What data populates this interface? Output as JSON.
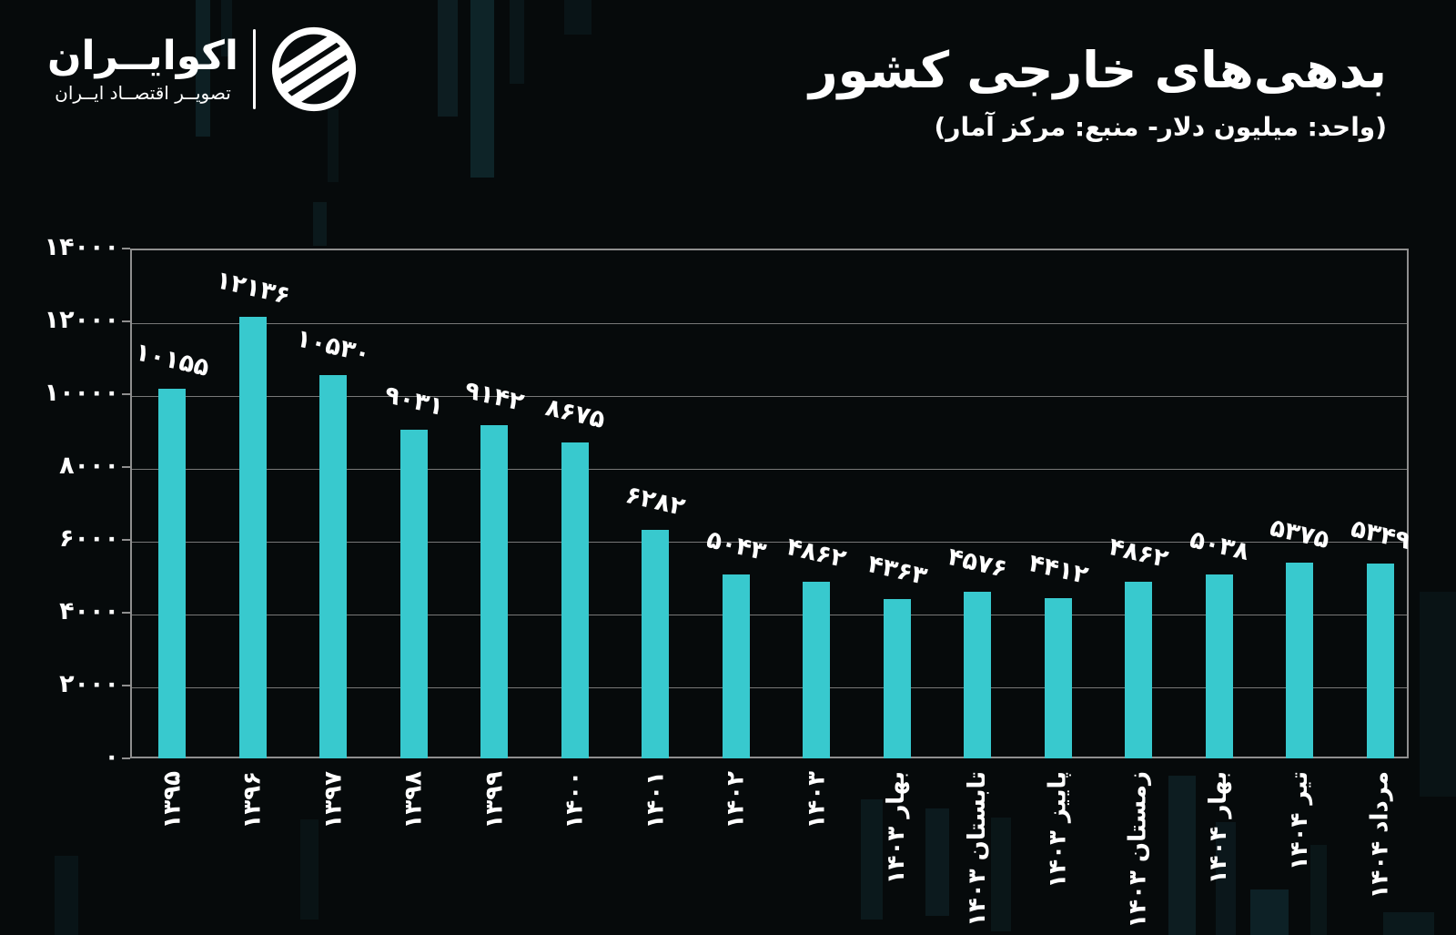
{
  "brand": {
    "name": "اکوایــران",
    "tagline": "تصویــر اقتصــاد ایــران"
  },
  "chart_data": {
    "type": "bar",
    "title": "بدهی‌های خارجی کشور",
    "subtitle": "(واحد: میلیون دلار- منبع: مرکز آمار)",
    "unit": "میلیون دلار",
    "source": "مرکز آمار",
    "categories": [
      "۱۳۹۵",
      "۱۳۹۶",
      "۱۳۹۷",
      "۱۳۹۸",
      "۱۳۹۹",
      "۱۴۰۰",
      "۱۴۰۱",
      "۱۴۰۲",
      "۱۴۰۳",
      "بهار ۱۴۰۳",
      "تابستان ۱۴۰۳",
      "پاییز ۱۴۰۳",
      "زمستان ۱۴۰۳",
      "بهار ۱۴۰۴",
      "تیر ۱۴۰۴",
      "مرداد ۱۴۰۴"
    ],
    "values": [
      10155,
      12136,
      10530,
      9031,
      9142,
      8675,
      6282,
      5043,
      4862,
      4363,
      4576,
      4412,
      4862,
      5038,
      5375,
      5349
    ],
    "value_labels": [
      "۱۰۱۵۵",
      "۱۲۱۳۶",
      "۱۰۵۳۰",
      "۹۰۳۱",
      "۹۱۴۲",
      "۸۶۷۵",
      "۶۲۸۲",
      "۵۰۴۳",
      "۴۸۶۲",
      "۴۳۶۳",
      "۴۵۷۶",
      "۴۴۱۲",
      "۴۸۶۲",
      "۵۰۳۸",
      "۵۳۷۵",
      "۵۳۴۹"
    ],
    "y_tick_labels": [
      "۰",
      "۲۰۰۰",
      "۴۰۰۰",
      "۶۰۰۰",
      "۸۰۰۰",
      "۱۰۰۰۰",
      "۱۲۰۰۰",
      "۱۴۰۰۰"
    ],
    "ylim": [
      0,
      14000
    ],
    "y_step": 2000,
    "grid": true,
    "legend": false,
    "xlabel": "",
    "ylabel": "",
    "colors": {
      "bar": "#38c9ce",
      "background": "#060a0b",
      "text": "#ffffff",
      "grid": "#787878",
      "spine": "#8f8f8f"
    }
  }
}
